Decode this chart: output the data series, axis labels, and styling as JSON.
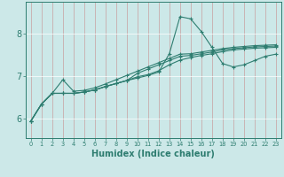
{
  "xlabel": "Humidex (Indice chaleur)",
  "bg_color": "#cce8e8",
  "grid_color": "#b0d8d8",
  "line_color": "#2e7d70",
  "xlim": [
    -0.5,
    23.5
  ],
  "ylim": [
    5.55,
    8.75
  ],
  "x_ticks": [
    0,
    1,
    2,
    3,
    4,
    5,
    6,
    7,
    8,
    9,
    10,
    11,
    12,
    13,
    14,
    15,
    16,
    17,
    18,
    19,
    20,
    21,
    22,
    23
  ],
  "y_ticks": [
    6,
    7,
    8
  ],
  "series": [
    {
      "data": [
        5.95,
        6.35,
        6.6,
        6.92,
        6.65,
        6.67,
        6.73,
        6.82,
        6.92,
        7.02,
        7.12,
        7.22,
        7.32,
        7.42,
        7.52,
        7.53,
        7.57,
        7.61,
        7.65,
        7.68,
        7.7,
        7.72,
        7.73,
        7.74
      ],
      "marker": true
    },
    {
      "data": [
        5.95,
        6.35,
        6.6,
        6.6,
        6.6,
        6.63,
        6.68,
        6.76,
        6.83,
        6.9,
        6.96,
        7.02,
        7.1,
        7.53,
        8.4,
        8.35,
        8.05,
        7.68,
        7.3,
        7.22,
        7.27,
        7.37,
        7.47,
        7.52
      ],
      "marker": true
    },
    {
      "data": [
        5.95,
        6.35,
        6.6,
        6.6,
        6.6,
        6.63,
        6.68,
        6.76,
        6.83,
        6.9,
        7.07,
        7.17,
        7.27,
        7.37,
        7.47,
        7.49,
        7.53,
        7.57,
        7.62,
        7.65,
        7.67,
        7.69,
        7.7,
        7.71
      ],
      "marker": true
    },
    {
      "data": [
        5.95,
        6.35,
        6.6,
        6.6,
        6.6,
        6.63,
        6.68,
        6.76,
        6.83,
        6.9,
        6.99,
        7.04,
        7.13,
        7.27,
        7.38,
        7.44,
        7.49,
        7.53,
        7.58,
        7.62,
        7.64,
        7.66,
        7.67,
        7.68
      ],
      "marker": true
    }
  ]
}
